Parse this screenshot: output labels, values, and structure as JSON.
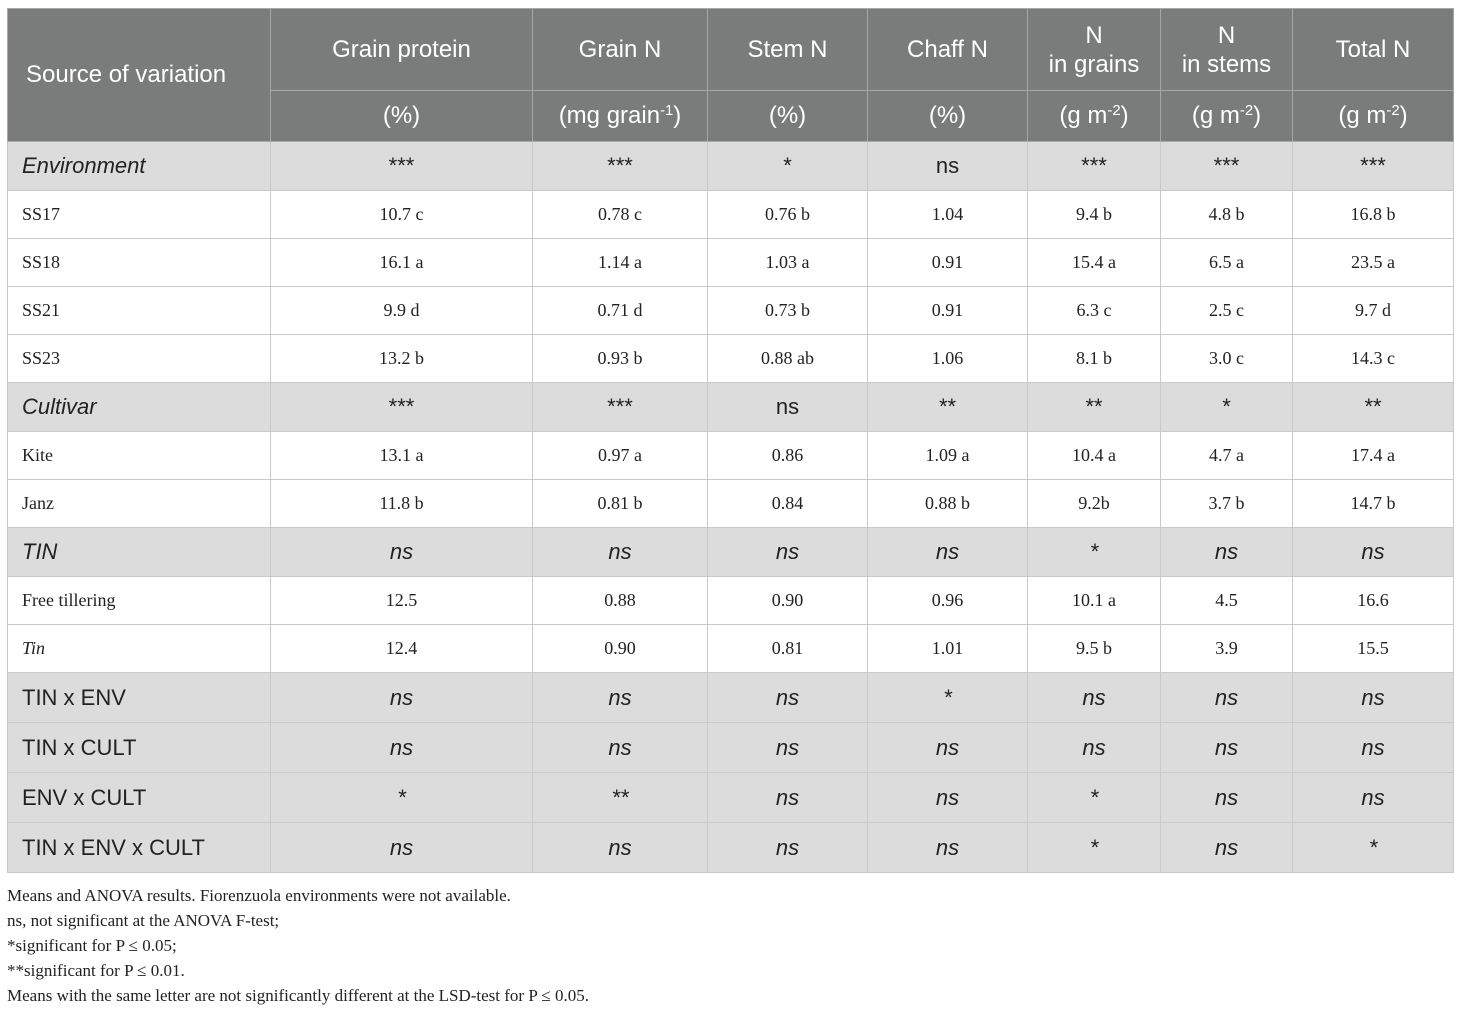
{
  "table": {
    "header_row1": {
      "source": "Source of variation",
      "cols": [
        "Grain protein",
        "Grain N",
        "Stem N",
        "Chaff N",
        "N",
        "N",
        "Total N"
      ],
      "cols_line2": [
        "",
        "",
        "",
        "",
        "in grains",
        "in stems",
        ""
      ]
    },
    "header_row2": {
      "units_pre": [
        "(%)",
        "(mg grain",
        "(%)",
        "(%)",
        "(g m",
        "(g m",
        "(g m"
      ],
      "units_sup": [
        "",
        "-1",
        "",
        "",
        "-2",
        "-2",
        "-2"
      ],
      "units_post": [
        "",
        ")",
        "",
        "",
        ")",
        ")",
        ")"
      ]
    },
    "rows": [
      {
        "type": "section",
        "label": "Environment",
        "values": [
          "***",
          "***",
          "*",
          "ns",
          "***",
          "***",
          "***"
        ]
      },
      {
        "type": "data",
        "label": "SS17",
        "values": [
          "10.7 c",
          "0.78 c",
          "0.76 b",
          "1.04",
          "9.4 b",
          "4.8 b",
          "16.8 b"
        ]
      },
      {
        "type": "data",
        "label": "SS18",
        "values": [
          "16.1 a",
          "1.14 a",
          "1.03 a",
          "0.91",
          "15.4 a",
          "6.5 a",
          "23.5 a"
        ]
      },
      {
        "type": "data",
        "label": "SS21",
        "values": [
          "9.9 d",
          "0.71 d",
          "0.73 b",
          "0.91",
          "6.3 c",
          "2.5 c",
          "9.7 d"
        ]
      },
      {
        "type": "data",
        "label": "SS23",
        "values": [
          "13.2 b",
          "0.93 b",
          "0.88 ab",
          "1.06",
          "8.1 b",
          "3.0 c",
          "14.3 c"
        ]
      },
      {
        "type": "section",
        "label": "Cultivar",
        "values": [
          "***",
          "***",
          "ns",
          "**",
          "**",
          "*",
          "**"
        ]
      },
      {
        "type": "data",
        "label": "Kite",
        "values": [
          "13.1 a",
          "0.97 a",
          "0.86",
          "1.09 a",
          "10.4 a",
          "4.7 a",
          "17.4 a"
        ]
      },
      {
        "type": "data",
        "label": "Janz",
        "values": [
          "11.8 b",
          "0.81 b",
          "0.84",
          "0.88 b",
          "9.2b",
          "3.7 b",
          "14.7 b"
        ]
      },
      {
        "type": "section",
        "label": "TIN",
        "values": [
          "ns",
          "ns",
          "ns",
          "ns",
          "*",
          "ns",
          "ns"
        ]
      },
      {
        "type": "data",
        "label": "Free tillering",
        "values": [
          "12.5",
          "0.88",
          "0.90",
          "0.96",
          "10.1 a",
          "4.5",
          "16.6"
        ]
      },
      {
        "type": "data",
        "label": "Tin",
        "values": [
          "12.4",
          "0.90",
          "0.81",
          "1.01",
          "9.5 b",
          "3.9",
          "15.5"
        ]
      },
      {
        "type": "section",
        "label": "TIN x ENV",
        "values": [
          "ns",
          "ns",
          "ns",
          "*",
          "ns",
          "ns",
          "ns"
        ]
      },
      {
        "type": "section",
        "label": "TIN x CULT",
        "values": [
          "ns",
          "ns",
          "ns",
          "ns",
          "ns",
          "ns",
          "ns"
        ]
      },
      {
        "type": "section",
        "label": "ENV x CULT",
        "values": [
          "*",
          "**",
          "ns",
          "ns",
          "*",
          "ns",
          "ns"
        ]
      },
      {
        "type": "section",
        "label": "TIN x ENV x CULT",
        "values": [
          "ns",
          "ns",
          "ns",
          "ns",
          "*",
          "ns",
          "*"
        ]
      }
    ]
  },
  "notes": [
    "Means and ANOVA results. Fiorenzuola environments were not available.",
    "ns, not significant at the ANOVA F-test;",
    "*significant for P ≤ 0.05;",
    "**significant for P ≤ 0.01.",
    "Means with the same letter are not significantly different at the LSD-test for P ≤ 0.05."
  ]
}
